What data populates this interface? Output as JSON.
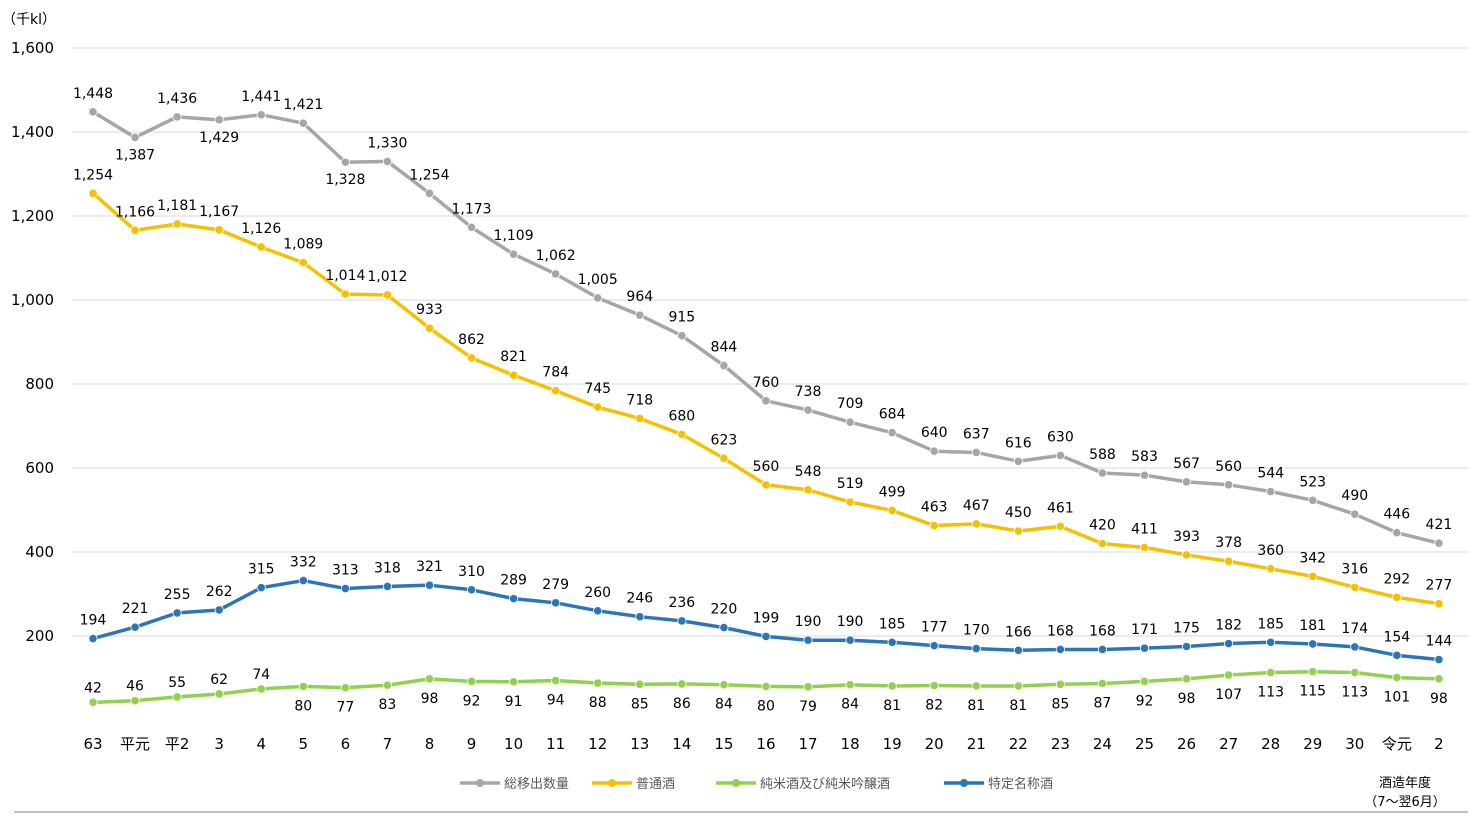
{
  "chart_data": {
    "type": "line",
    "unit_label": "（千kl）",
    "categories": [
      "63",
      "平元",
      "平2",
      "3",
      "4",
      "5",
      "6",
      "7",
      "8",
      "9",
      "10",
      "11",
      "12",
      "13",
      "14",
      "15",
      "16",
      "17",
      "18",
      "19",
      "20",
      "21",
      "22",
      "23",
      "24",
      "25",
      "26",
      "27",
      "28",
      "29",
      "30",
      "令元",
      "2"
    ],
    "ylim": [
      0,
      1600
    ],
    "yticks": [
      200,
      400,
      600,
      800,
      1000,
      1200,
      1400,
      1600
    ],
    "ytick_labels": [
      "200",
      "400",
      "600",
      "800",
      "1,000",
      "1,200",
      "1,400",
      "1,600"
    ],
    "grid": true,
    "legend_position": "bottom",
    "x_axis_note": [
      "酒造年度",
      "（7～翌6月）"
    ],
    "series": [
      {
        "name": "総移出数量",
        "color": "#a6a6a6",
        "values": [
          1448,
          1387,
          1436,
          1429,
          1441,
          1421,
          1328,
          1330,
          1254,
          1173,
          1109,
          1062,
          1005,
          964,
          915,
          844,
          760,
          738,
          709,
          684,
          640,
          637,
          616,
          630,
          588,
          583,
          567,
          560,
          544,
          523,
          490,
          446,
          421
        ],
        "labels": [
          "1,448",
          "1,387",
          "1,436",
          "1,429",
          "1,441",
          "1,421",
          "1,328",
          "1,330",
          "1,254",
          "1,173",
          "1,109",
          "1,062",
          "1,005",
          "964",
          "915",
          "844",
          "760",
          "738",
          "709",
          "684",
          "640",
          "637",
          "616",
          "630",
          "588",
          "583",
          "567",
          "560",
          "544",
          "523",
          "490",
          "446",
          "421"
        ]
      },
      {
        "name": "普通酒",
        "color": "#f5c000",
        "values": [
          1254,
          1166,
          1181,
          1167,
          1126,
          1089,
          1014,
          1012,
          933,
          862,
          821,
          784,
          745,
          718,
          680,
          623,
          560,
          548,
          519,
          499,
          463,
          467,
          450,
          461,
          420,
          411,
          393,
          378,
          360,
          342,
          316,
          292,
          277
        ],
        "labels": [
          "1,254",
          "1,166",
          "1,181",
          "1,167",
          "1,126",
          "1,089",
          "1,014",
          "1,012",
          "933",
          "862",
          "821",
          "784",
          "745",
          "718",
          "680",
          "623",
          "560",
          "548",
          "519",
          "499",
          "463",
          "467",
          "450",
          "461",
          "420",
          "411",
          "393",
          "378",
          "360",
          "342",
          "316",
          "292",
          "277"
        ]
      },
      {
        "name": "純米酒及び純米吟醸酒",
        "color": "#92d050",
        "values": [
          42,
          46,
          55,
          62,
          74,
          80,
          77,
          83,
          98,
          92,
          91,
          94,
          88,
          85,
          86,
          84,
          80,
          79,
          84,
          81,
          82,
          81,
          81,
          85,
          87,
          92,
          98,
          107,
          113,
          115,
          113,
          101,
          98
        ],
        "labels": [
          "42",
          "46",
          "55",
          "62",
          "74",
          "80",
          "77",
          "83",
          "98",
          "92",
          "91",
          "94",
          "88",
          "85",
          "86",
          "84",
          "80",
          "79",
          "84",
          "81",
          "82",
          "81",
          "81",
          "85",
          "87",
          "92",
          "98",
          "107",
          "113",
          "115",
          "113",
          "101",
          "98"
        ]
      },
      {
        "name": "特定名称酒",
        "color": "#2e75b6",
        "values": [
          194,
          221,
          255,
          262,
          315,
          332,
          313,
          318,
          321,
          310,
          289,
          279,
          260,
          246,
          236,
          220,
          199,
          190,
          190,
          185,
          177,
          170,
          166,
          168,
          168,
          171,
          175,
          182,
          185,
          181,
          174,
          154,
          144
        ],
        "labels": [
          "194",
          "221",
          "255",
          "262",
          "315",
          "332",
          "313",
          "318",
          "321",
          "310",
          "289",
          "279",
          "260",
          "246",
          "236",
          "220",
          "199",
          "190",
          "190",
          "185",
          "177",
          "170",
          "166",
          "168",
          "168",
          "171",
          "175",
          "182",
          "185",
          "181",
          "174",
          "154",
          "144"
        ]
      }
    ]
  }
}
